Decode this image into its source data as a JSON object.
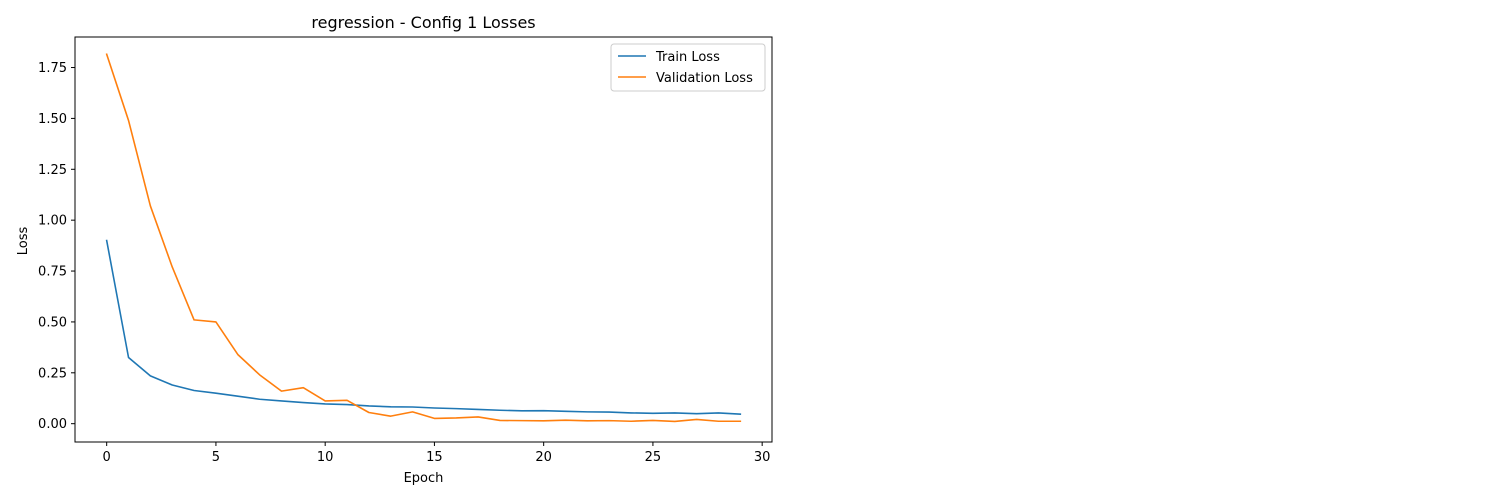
{
  "chart_data": {
    "type": "line",
    "title": "regression - Config 1 Losses",
    "xlabel": "Epoch",
    "ylabel": "Loss",
    "xlim": [
      -1.45,
      30.45
    ],
    "ylim": [
      -0.09,
      1.9
    ],
    "xticks": [
      0,
      5,
      10,
      15,
      20,
      25,
      30
    ],
    "yticks": [
      0.0,
      0.25,
      0.5,
      0.75,
      1.0,
      1.25,
      1.5,
      1.75
    ],
    "ytick_labels": [
      "0.00",
      "0.25",
      "0.50",
      "0.75",
      "1.00",
      "1.25",
      "1.50",
      "1.75"
    ],
    "grid": false,
    "legend_position": "top-right",
    "x": [
      0,
      1,
      2,
      3,
      4,
      5,
      6,
      7,
      8,
      9,
      10,
      11,
      12,
      13,
      14,
      15,
      16,
      17,
      18,
      19,
      20,
      21,
      22,
      23,
      24,
      25,
      26,
      27,
      28,
      29
    ],
    "series": [
      {
        "name": "Train Loss",
        "color": "#1f77b4",
        "values": [
          0.9,
          0.325,
          0.235,
          0.19,
          0.163,
          0.15,
          0.135,
          0.12,
          0.112,
          0.104,
          0.097,
          0.094,
          0.087,
          0.083,
          0.082,
          0.077,
          0.074,
          0.07,
          0.066,
          0.063,
          0.064,
          0.061,
          0.058,
          0.057,
          0.053,
          0.051,
          0.053,
          0.049,
          0.053,
          0.047
        ]
      },
      {
        "name": "Validation Loss",
        "color": "#ff7f0e",
        "values": [
          1.815,
          1.49,
          1.07,
          0.77,
          0.51,
          0.5,
          0.34,
          0.24,
          0.16,
          0.177,
          0.112,
          0.115,
          0.055,
          0.037,
          0.058,
          0.026,
          0.028,
          0.033,
          0.016,
          0.015,
          0.014,
          0.017,
          0.014,
          0.015,
          0.012,
          0.016,
          0.011,
          0.021,
          0.012,
          0.012
        ]
      }
    ]
  }
}
